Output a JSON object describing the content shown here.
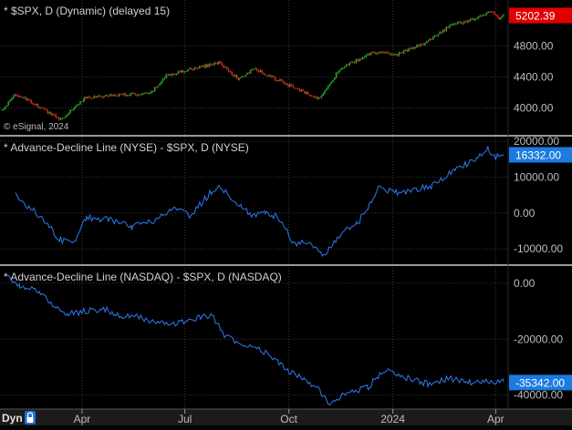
{
  "colors": {
    "background": "#000000",
    "grid": "#3a3a3a",
    "separator": "#9a9a9a",
    "text": "#d0d0d0",
    "axis_text": "#bdbdbd",
    "candle_up": "#2aa12a",
    "candle_down": "#e02020",
    "line": "#2f7bf0",
    "last_price_red": "#e00000",
    "last_price_blue": "#1c7be0"
  },
  "icons": {
    "lock": "lock-icon"
  },
  "status_bar": {
    "mode": "Dyn"
  },
  "x_axis": {
    "labels": [
      {
        "text": "Apr",
        "date": "2023-04-01"
      },
      {
        "text": "Jul",
        "date": "2023-07-01"
      },
      {
        "text": "Oct",
        "date": "2023-10-01"
      },
      {
        "text": "2024",
        "date": "2024-01-01"
      },
      {
        "text": "Apr",
        "date": "2024-04-01"
      }
    ]
  },
  "chart_data": [
    {
      "type": "candlestick",
      "title": "* $SPX, D (Dynamic) (delayed 15)",
      "watermark": "© eSignal, 2024",
      "x_range": [
        "2023-01-20",
        "2024-04-08"
      ],
      "ylim": [
        3700,
        5350
      ],
      "yticks": [
        4000,
        4400,
        4800
      ],
      "ytick_labels": [
        "4000.00",
        "4400.00",
        "4800.00"
      ],
      "last_value": 5202.39,
      "last_value_label": "5202.39",
      "grid": true,
      "anchors": [
        [
          "2023-01-20",
          3972
        ],
        [
          "2023-02-02",
          4180
        ],
        [
          "2023-03-13",
          3855
        ],
        [
          "2023-04-03",
          4124
        ],
        [
          "2023-04-28",
          4169
        ],
        [
          "2023-05-31",
          4180
        ],
        [
          "2023-06-15",
          4425
        ],
        [
          "2023-07-31",
          4588
        ],
        [
          "2023-08-18",
          4370
        ],
        [
          "2023-08-31",
          4508
        ],
        [
          "2023-10-02",
          4288
        ],
        [
          "2023-10-27",
          4117
        ],
        [
          "2023-11-15",
          4502
        ],
        [
          "2023-12-14",
          4719
        ],
        [
          "2024-01-05",
          4697
        ],
        [
          "2024-01-31",
          4846
        ],
        [
          "2024-02-23",
          5088
        ],
        [
          "2024-03-08",
          5123
        ],
        [
          "2024-03-28",
          5254
        ],
        [
          "2024-04-04",
          5147
        ],
        [
          "2024-04-08",
          5202
        ]
      ]
    },
    {
      "type": "line",
      "title": "* Advance-Decline Line (NYSE) - $SPX, D (NYSE)",
      "series_name": "Advance-Decline Line (NYSE)",
      "x_range": [
        "2023-01-20",
        "2024-04-08"
      ],
      "ylim": [
        -13500,
        20000
      ],
      "yticks": [
        20000,
        10000,
        0,
        -10000
      ],
      "ytick_labels": [
        "20000.00",
        "10000.00",
        "0.00",
        "-10000.00"
      ],
      "last_value": 16332,
      "last_value_label": "16332.00",
      "grid": true,
      "anchors": [
        [
          "2023-02-01",
          4800
        ],
        [
          "2023-02-22",
          -600
        ],
        [
          "2023-03-13",
          -7500
        ],
        [
          "2023-03-25",
          -7900
        ],
        [
          "2023-04-05",
          -1200
        ],
        [
          "2023-04-25",
          -1800
        ],
        [
          "2023-05-15",
          -3800
        ],
        [
          "2023-06-01",
          -2500
        ],
        [
          "2023-06-20",
          1300
        ],
        [
          "2023-07-05",
          -800
        ],
        [
          "2023-07-25",
          6100
        ],
        [
          "2023-07-31",
          7500
        ],
        [
          "2023-08-20",
          1500
        ],
        [
          "2023-08-30",
          -500
        ],
        [
          "2023-09-10",
          500
        ],
        [
          "2023-09-25",
          -2000
        ],
        [
          "2023-10-05",
          -8500
        ],
        [
          "2023-10-20",
          -8000
        ],
        [
          "2023-11-01",
          -12300
        ],
        [
          "2023-11-15",
          -6000
        ],
        [
          "2023-12-01",
          -2800
        ],
        [
          "2023-12-20",
          7000
        ],
        [
          "2024-01-05",
          5800
        ],
        [
          "2024-01-20",
          6500
        ],
        [
          "2024-02-05",
          7600
        ],
        [
          "2024-02-25",
          12100
        ],
        [
          "2024-03-15",
          15000
        ],
        [
          "2024-03-25",
          18000
        ],
        [
          "2024-04-01",
          15500
        ],
        [
          "2024-04-08",
          16332
        ]
      ]
    },
    {
      "type": "line",
      "title": "* Advance-Decline Line (NASDAQ) - $SPX, D (NASDAQ)",
      "series_name": "Advance-Decline Line (NASDAQ)",
      "x_range": [
        "2023-01-20",
        "2024-04-08"
      ],
      "ylim": [
        -44000,
        4500
      ],
      "yticks": [
        0,
        -20000,
        -40000
      ],
      "ytick_labels": [
        "0.00",
        "-20000.00",
        "-40000.00"
      ],
      "last_value": -35342,
      "last_value_label": "-35342.00",
      "grid": true,
      "anchors": [
        [
          "2023-01-25",
          2500
        ],
        [
          "2023-02-05",
          -1000
        ],
        [
          "2023-02-22",
          -3000
        ],
        [
          "2023-03-10",
          -9000
        ],
        [
          "2023-03-20",
          -11000
        ],
        [
          "2023-04-05",
          -10000
        ],
        [
          "2023-04-20",
          -9000
        ],
        [
          "2023-05-01",
          -11500
        ],
        [
          "2023-05-20",
          -12000
        ],
        [
          "2023-06-01",
          -13500
        ],
        [
          "2023-06-15",
          -15000
        ],
        [
          "2023-06-30",
          -14000
        ],
        [
          "2023-07-15",
          -12000
        ],
        [
          "2023-07-25",
          -11500
        ],
        [
          "2023-08-05",
          -18500
        ],
        [
          "2023-08-20",
          -22000
        ],
        [
          "2023-08-31",
          -22000
        ],
        [
          "2023-09-15",
          -26000
        ],
        [
          "2023-10-01",
          -31500
        ],
        [
          "2023-10-15",
          -34000
        ],
        [
          "2023-10-27",
          -38000
        ],
        [
          "2023-11-05",
          -43000
        ],
        [
          "2023-11-20",
          -39500
        ],
        [
          "2023-12-10",
          -37000
        ],
        [
          "2023-12-25",
          -31000
        ],
        [
          "2024-01-10",
          -33500
        ],
        [
          "2024-02-01",
          -36000
        ],
        [
          "2024-02-20",
          -34000
        ],
        [
          "2024-03-10",
          -35500
        ],
        [
          "2024-03-25",
          -35000
        ],
        [
          "2024-04-08",
          -35342
        ]
      ]
    }
  ]
}
